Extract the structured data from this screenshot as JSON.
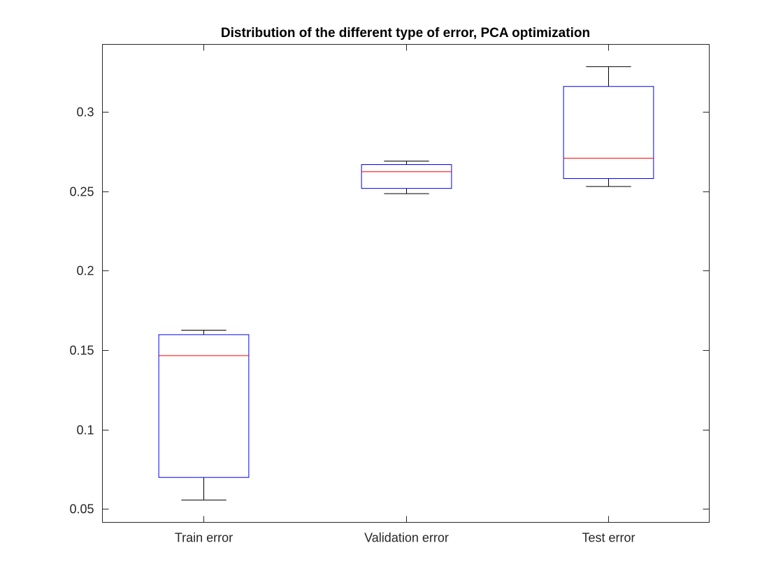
{
  "chart_data": {
    "type": "boxplot",
    "title": "Distribution of the different type of error, PCA optimization",
    "xlabel": "",
    "ylabel": "",
    "categories": [
      "Train error",
      "Validation error",
      "Test error"
    ],
    "boxes": [
      {
        "label": "Train error",
        "whisker_low": 0.0555,
        "q1": 0.0698,
        "median": 0.1465,
        "q3": 0.1597,
        "whisker_high": 0.1625
      },
      {
        "label": "Validation error",
        "whisker_low": 0.2485,
        "q1": 0.2518,
        "median": 0.2623,
        "q3": 0.2668,
        "whisker_high": 0.269
      },
      {
        "label": "Test error",
        "whisker_low": 0.253,
        "q1": 0.258,
        "median": 0.2708,
        "q3": 0.316,
        "whisker_high": 0.3285
      }
    ],
    "ylim": [
      0.0415,
      0.3425
    ],
    "yticks": [
      0.05,
      0.1,
      0.15,
      0.2,
      0.25,
      0.3
    ],
    "ytick_labels": [
      "0.05",
      "0.1",
      "0.15",
      "0.2",
      "0.25",
      "0.3"
    ],
    "grid": false,
    "colors": {
      "box": "#0000ff",
      "median": "#ff0000",
      "whisker": "#000000",
      "axes": "#262626"
    }
  }
}
